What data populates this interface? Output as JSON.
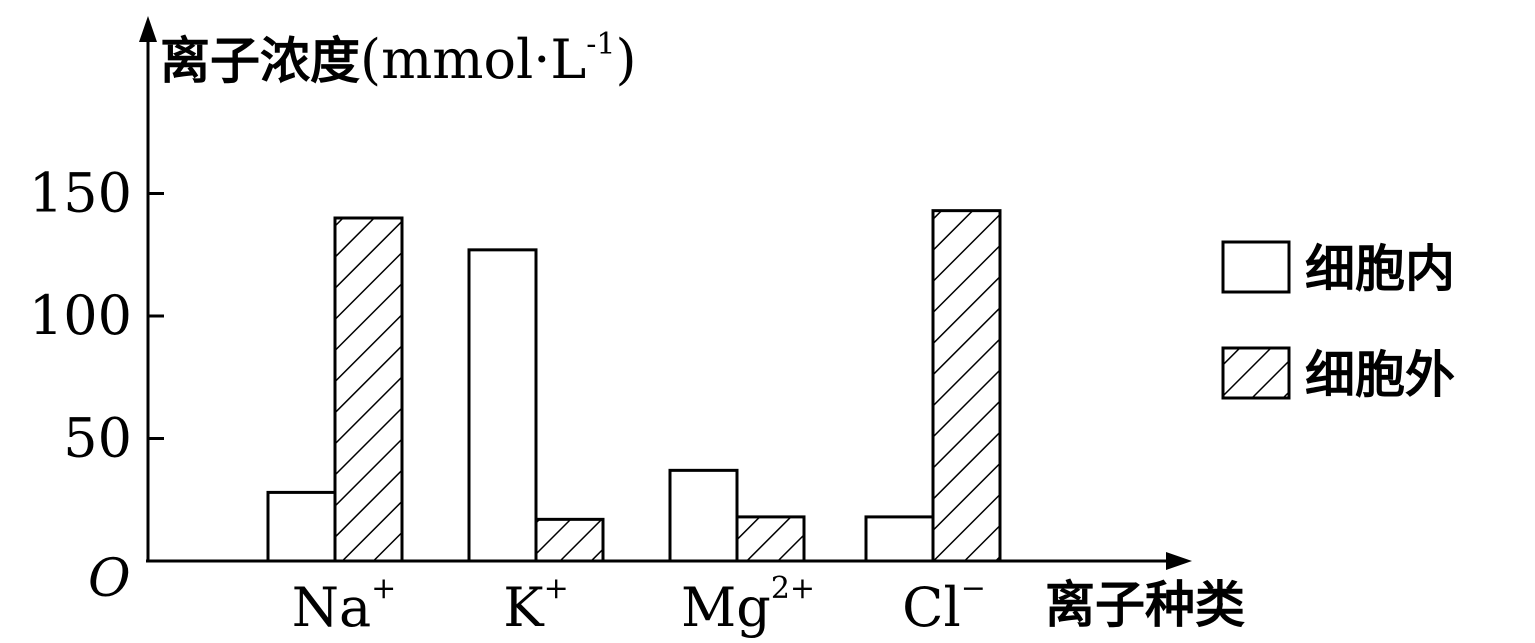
{
  "chart_data": {
    "type": "bar",
    "ylabel": "离子浓度(mmol·L",
    "ylabel_sup": "-1",
    "ylabel_close": ")",
    "xlabel": "离子种类",
    "origin_label": "O",
    "categories": [
      {
        "base": "Na",
        "sup": "+"
      },
      {
        "base": "K",
        "sup": "+"
      },
      {
        "base": "Mg",
        "sup": "2+"
      },
      {
        "base": "Cl",
        "sup": "−"
      }
    ],
    "yticks": [
      "50",
      "100",
      "150"
    ],
    "ytick_values": [
      50,
      100,
      150
    ],
    "ylim": [
      0,
      180
    ],
    "series": [
      {
        "name": "细胞内",
        "pattern": "none",
        "values": [
          28,
          127,
          37,
          18
        ]
      },
      {
        "name": "细胞外",
        "pattern": "hatch",
        "values": [
          140,
          17,
          18,
          143
        ]
      }
    ],
    "legend_position": "right",
    "grid": false
  }
}
